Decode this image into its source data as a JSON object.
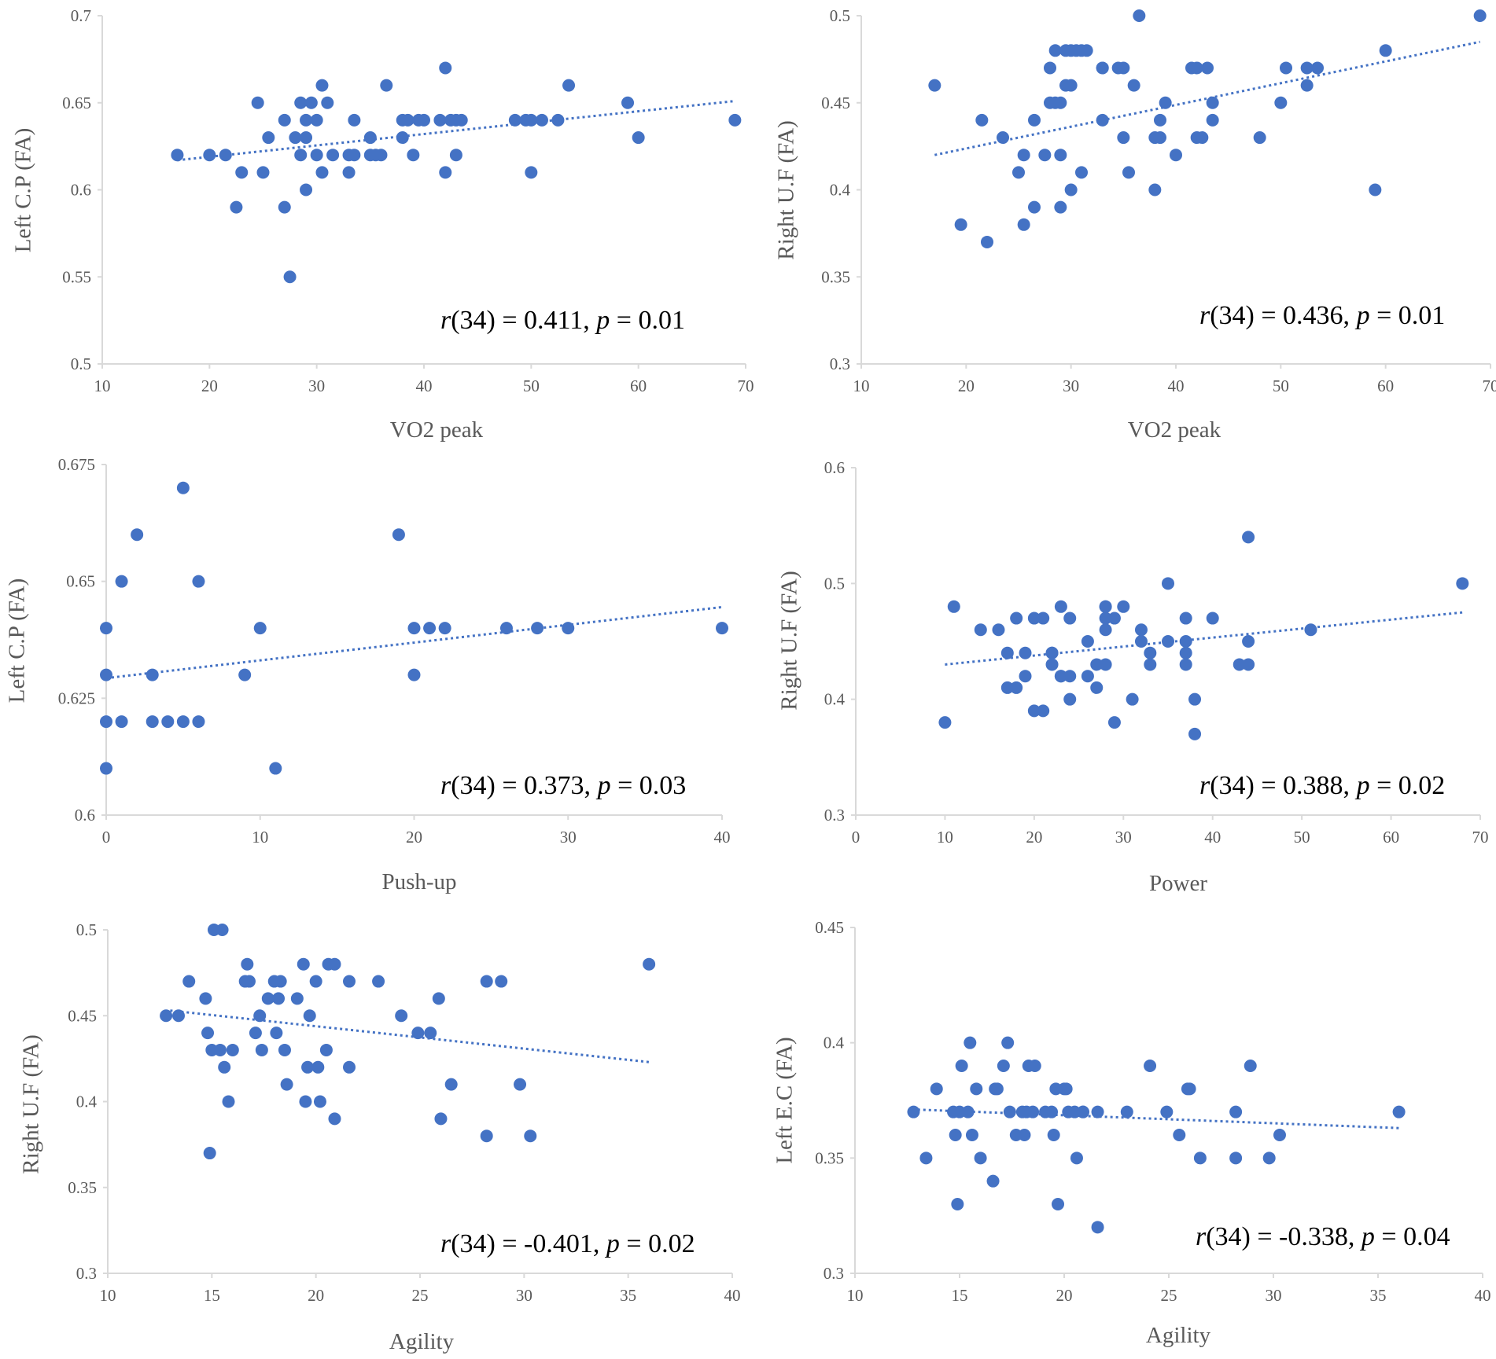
{
  "colors": {
    "marker": "#4472C4",
    "trend": "#4472C4",
    "axis": "#D9D9D9",
    "tick_text": "#595959"
  },
  "chart_data": [
    {
      "type": "scatter",
      "title": "",
      "xlabel": "VO2 peak",
      "ylabel": "Left C.P (FA)",
      "xlim": [
        10,
        70
      ],
      "ylim": [
        0.5,
        0.7
      ],
      "xticks": [
        "10",
        "20",
        "30",
        "40",
        "50",
        "60",
        "70"
      ],
      "yticks": [
        "0.5",
        "0.55",
        "0.6",
        "0.65",
        "0.7"
      ],
      "annotation": {
        "r_label": "r",
        "df": "(34) = 0.411, ",
        "p_label": "p",
        "p_value": " = 0.01"
      },
      "trendline": {
        "x": [
          17,
          69
        ],
        "y": [
          0.617,
          0.651
        ]
      },
      "x": [
        17,
        20,
        21.5,
        22.5,
        23,
        24.5,
        25,
        25.5,
        27,
        27,
        27.5,
        28,
        28.5,
        28.5,
        29,
        29,
        29,
        29.5,
        30,
        30,
        30.5,
        30.5,
        31,
        31.5,
        33,
        33,
        33.5,
        33.5,
        35,
        35,
        35.5,
        36,
        36.5,
        38,
        38,
        38.5,
        39,
        39.5,
        40,
        41.5,
        42,
        42,
        42.5,
        43,
        43,
        43.5,
        48.5,
        49.5,
        50,
        50,
        51,
        52.5,
        53.5,
        59,
        60,
        69
      ],
      "y": [
        0.62,
        0.62,
        0.62,
        0.59,
        0.61,
        0.65,
        0.61,
        0.63,
        0.64,
        0.59,
        0.55,
        0.63,
        0.62,
        0.65,
        0.64,
        0.63,
        0.6,
        0.65,
        0.64,
        0.62,
        0.66,
        0.61,
        0.65,
        0.62,
        0.62,
        0.61,
        0.64,
        0.62,
        0.63,
        0.62,
        0.62,
        0.62,
        0.66,
        0.63,
        0.64,
        0.64,
        0.62,
        0.64,
        0.64,
        0.64,
        0.61,
        0.67,
        0.64,
        0.64,
        0.62,
        0.64,
        0.64,
        0.64,
        0.64,
        0.61,
        0.64,
        0.64,
        0.66,
        0.65,
        0.63,
        0.64
      ]
    },
    {
      "type": "scatter",
      "title": "",
      "xlabel": "VO2 peak",
      "ylabel": "Right U.F (FA)",
      "xlim": [
        10,
        70
      ],
      "ylim": [
        0.3,
        0.5
      ],
      "xticks": [
        "10",
        "20",
        "30",
        "40",
        "50",
        "60",
        "70"
      ],
      "yticks": [
        "0.3",
        "0.35",
        "0.4",
        "0.45",
        "0.5"
      ],
      "annotation": {
        "r_label": "r",
        "df": "(34) = 0.436, ",
        "p_label": "p",
        "p_value": " = 0.01"
      },
      "trendline": {
        "x": [
          17,
          69
        ],
        "y": [
          0.42,
          0.485
        ]
      },
      "x": [
        17,
        19.5,
        21.5,
        22,
        23.5,
        25,
        25.5,
        25.5,
        26.5,
        26.5,
        27.5,
        28,
        28,
        28.5,
        28.5,
        29,
        29,
        29,
        29.5,
        29.5,
        30,
        30,
        30,
        30.5,
        31,
        31,
        31.5,
        33,
        33,
        33,
        34.5,
        35,
        35,
        35.5,
        36,
        36.5,
        38,
        38,
        38.5,
        38.5,
        39,
        40,
        41.5,
        42,
        42,
        42.5,
        43,
        43.5,
        43.5,
        48,
        50,
        50.5,
        52.5,
        52.5,
        53.5,
        59,
        60,
        69
      ],
      "y": [
        0.46,
        0.38,
        0.44,
        0.37,
        0.43,
        0.41,
        0.42,
        0.38,
        0.39,
        0.44,
        0.42,
        0.47,
        0.45,
        0.48,
        0.45,
        0.39,
        0.42,
        0.45,
        0.46,
        0.48,
        0.46,
        0.4,
        0.48,
        0.48,
        0.48,
        0.41,
        0.48,
        0.44,
        0.47,
        0.47,
        0.47,
        0.43,
        0.47,
        0.41,
        0.46,
        0.5,
        0.4,
        0.43,
        0.44,
        0.43,
        0.45,
        0.42,
        0.47,
        0.43,
        0.47,
        0.43,
        0.47,
        0.45,
        0.44,
        0.43,
        0.45,
        0.47,
        0.47,
        0.46,
        0.47,
        0.4,
        0.48,
        0.5
      ]
    },
    {
      "type": "scatter",
      "title": "",
      "xlabel": "Push-up",
      "ylabel": "Left C.P (FA)",
      "xlim": [
        0,
        40
      ],
      "ylim": [
        0.6,
        0.675
      ],
      "xticks": [
        "0",
        "10",
        "20",
        "30",
        "40"
      ],
      "yticks": [
        "0.6",
        "0.625",
        "0.65",
        "0.675"
      ],
      "annotation": {
        "r_label": "r",
        "df": "(34) = 0.373, ",
        "p_label": "p",
        "p_value": " = 0.03"
      },
      "trendline": {
        "x": [
          0,
          40
        ],
        "y": [
          0.6293,
          0.6445
        ]
      },
      "x": [
        0,
        0,
        0,
        0,
        1,
        1,
        2,
        3,
        3,
        4,
        5,
        5,
        6,
        6,
        9,
        10,
        11,
        19,
        20,
        20,
        21,
        22,
        26,
        28,
        30,
        40
      ],
      "y": [
        0.64,
        0.63,
        0.62,
        0.61,
        0.65,
        0.62,
        0.66,
        0.62,
        0.63,
        0.62,
        0.67,
        0.62,
        0.65,
        0.62,
        0.63,
        0.64,
        0.61,
        0.66,
        0.64,
        0.63,
        0.64,
        0.64,
        0.64,
        0.64,
        0.64,
        0.64
      ]
    },
    {
      "type": "scatter",
      "title": "",
      "xlabel": "Power",
      "ylabel": "Right U.F (FA)",
      "xlim": [
        0,
        70
      ],
      "ylim": [
        0.3,
        0.6
      ],
      "xticks": [
        "0",
        "10",
        "20",
        "30",
        "40",
        "50",
        "60",
        "70"
      ],
      "yticks": [
        "0.3",
        "0.4",
        "0.5",
        "0.6"
      ],
      "annotation": {
        "r_label": "r",
        "df": "(34) = 0.388, ",
        "p_label": "p",
        "p_value": " = 0.02"
      },
      "trendline": {
        "x": [
          10,
          68
        ],
        "y": [
          0.43,
          0.475
        ]
      },
      "x": [
        10,
        11,
        14,
        16,
        17,
        17,
        18,
        18,
        19,
        19,
        20,
        20,
        21,
        21,
        22,
        22,
        22,
        23,
        23,
        23,
        24,
        24,
        24,
        26,
        26,
        27,
        27,
        28,
        28,
        28,
        28,
        28,
        29,
        29,
        30,
        31,
        32,
        32,
        33,
        33,
        35,
        35,
        37,
        37,
        37,
        37,
        38,
        38,
        40,
        43,
        44,
        44,
        44,
        51,
        68
      ],
      "y": [
        0.38,
        0.48,
        0.46,
        0.46,
        0.44,
        0.41,
        0.47,
        0.41,
        0.44,
        0.42,
        0.47,
        0.39,
        0.47,
        0.39,
        0.44,
        0.43,
        0.44,
        0.48,
        0.42,
        0.42,
        0.47,
        0.42,
        0.4,
        0.45,
        0.42,
        0.43,
        0.41,
        0.48,
        0.47,
        0.46,
        0.43,
        0.48,
        0.47,
        0.38,
        0.48,
        0.4,
        0.46,
        0.45,
        0.44,
        0.43,
        0.5,
        0.45,
        0.47,
        0.45,
        0.44,
        0.43,
        0.4,
        0.37,
        0.47,
        0.43,
        0.54,
        0.45,
        0.43,
        0.46,
        0.5
      ]
    },
    {
      "type": "scatter",
      "title": "",
      "xlabel": "Agility",
      "ylabel": "Right U.F (FA)",
      "xlim": [
        10,
        40
      ],
      "ylim": [
        0.3,
        0.5
      ],
      "xticks": [
        "10",
        "15",
        "20",
        "25",
        "30",
        "35",
        "40"
      ],
      "yticks": [
        "0.3",
        "0.35",
        "0.4",
        "0.45",
        "0.5"
      ],
      "annotation": {
        "r_label": "r",
        "df": "(34) = -0.401, ",
        "p_label": "p",
        "p_value": " = 0.02"
      },
      "trendline": {
        "x": [
          13,
          36
        ],
        "y": [
          0.453,
          0.423
        ]
      },
      "x": [
        12.8,
        13.4,
        13.9,
        14.7,
        14.8,
        14.9,
        15,
        15.1,
        15.4,
        15.5,
        15.6,
        15.8,
        16,
        16.6,
        16.7,
        16.8,
        17.1,
        17.3,
        17.4,
        17.7,
        18,
        18.1,
        18.2,
        18.3,
        18.5,
        18.6,
        19.1,
        19.4,
        19.5,
        19.6,
        19.7,
        20,
        20.1,
        20.2,
        20.5,
        20.6,
        20.9,
        20.9,
        21.6,
        21.6,
        23,
        24.1,
        24.9,
        25.5,
        25.9,
        26,
        26.5,
        28.2,
        28.2,
        28.9,
        29.8,
        30.3,
        36
      ],
      "y": [
        0.45,
        0.45,
        0.47,
        0.46,
        0.44,
        0.37,
        0.43,
        0.5,
        0.43,
        0.5,
        0.42,
        0.4,
        0.43,
        0.47,
        0.48,
        0.47,
        0.44,
        0.45,
        0.43,
        0.46,
        0.47,
        0.44,
        0.46,
        0.47,
        0.43,
        0.41,
        0.46,
        0.48,
        0.4,
        0.42,
        0.45,
        0.47,
        0.42,
        0.4,
        0.43,
        0.48,
        0.48,
        0.39,
        0.47,
        0.42,
        0.47,
        0.45,
        0.44,
        0.44,
        0.46,
        0.39,
        0.41,
        0.47,
        0.38,
        0.47,
        0.41,
        0.38,
        0.48
      ]
    },
    {
      "type": "scatter",
      "title": "",
      "xlabel": "Agility",
      "ylabel": "Left E.C (FA)",
      "xlim": [
        10,
        40
      ],
      "ylim": [
        0.3,
        0.45
      ],
      "xticks": [
        "10",
        "15",
        "20",
        "25",
        "30",
        "35",
        "40"
      ],
      "yticks": [
        "0.3",
        "0.35",
        "0.4",
        "0.45"
      ],
      "annotation": {
        "r_label": "r",
        "df": "(34) = -0.338, ",
        "p_label": "p",
        "p_value": " = 0.04"
      },
      "trendline": {
        "x": [
          13,
          36
        ],
        "y": [
          0.371,
          0.363
        ]
      },
      "x": [
        12.8,
        13.4,
        13.9,
        14.7,
        14.8,
        14.9,
        15,
        15.1,
        15.4,
        15.5,
        15.6,
        15.8,
        16,
        16.6,
        16.7,
        16.8,
        17.1,
        17.3,
        17.4,
        17.7,
        18,
        18.1,
        18.2,
        18.3,
        18.5,
        18.6,
        19.1,
        19.4,
        19.5,
        19.6,
        19.7,
        20,
        20.1,
        20.2,
        20.5,
        20.6,
        20.9,
        20.9,
        21.6,
        21.6,
        23,
        24.1,
        24.9,
        25.5,
        25.9,
        26,
        26.5,
        28.2,
        28.2,
        28.9,
        29.8,
        30.3,
        36
      ],
      "y": [
        0.37,
        0.35,
        0.38,
        0.37,
        0.36,
        0.33,
        0.37,
        0.39,
        0.37,
        0.4,
        0.36,
        0.38,
        0.35,
        0.34,
        0.38,
        0.38,
        0.39,
        0.4,
        0.37,
        0.36,
        0.37,
        0.36,
        0.37,
        0.39,
        0.37,
        0.39,
        0.37,
        0.37,
        0.36,
        0.38,
        0.33,
        0.38,
        0.38,
        0.37,
        0.37,
        0.35,
        0.37,
        0.37,
        0.32,
        0.37,
        0.37,
        0.39,
        0.37,
        0.36,
        0.38,
        0.38,
        0.35,
        0.37,
        0.35,
        0.39,
        0.35,
        0.36,
        0.37
      ]
    }
  ]
}
